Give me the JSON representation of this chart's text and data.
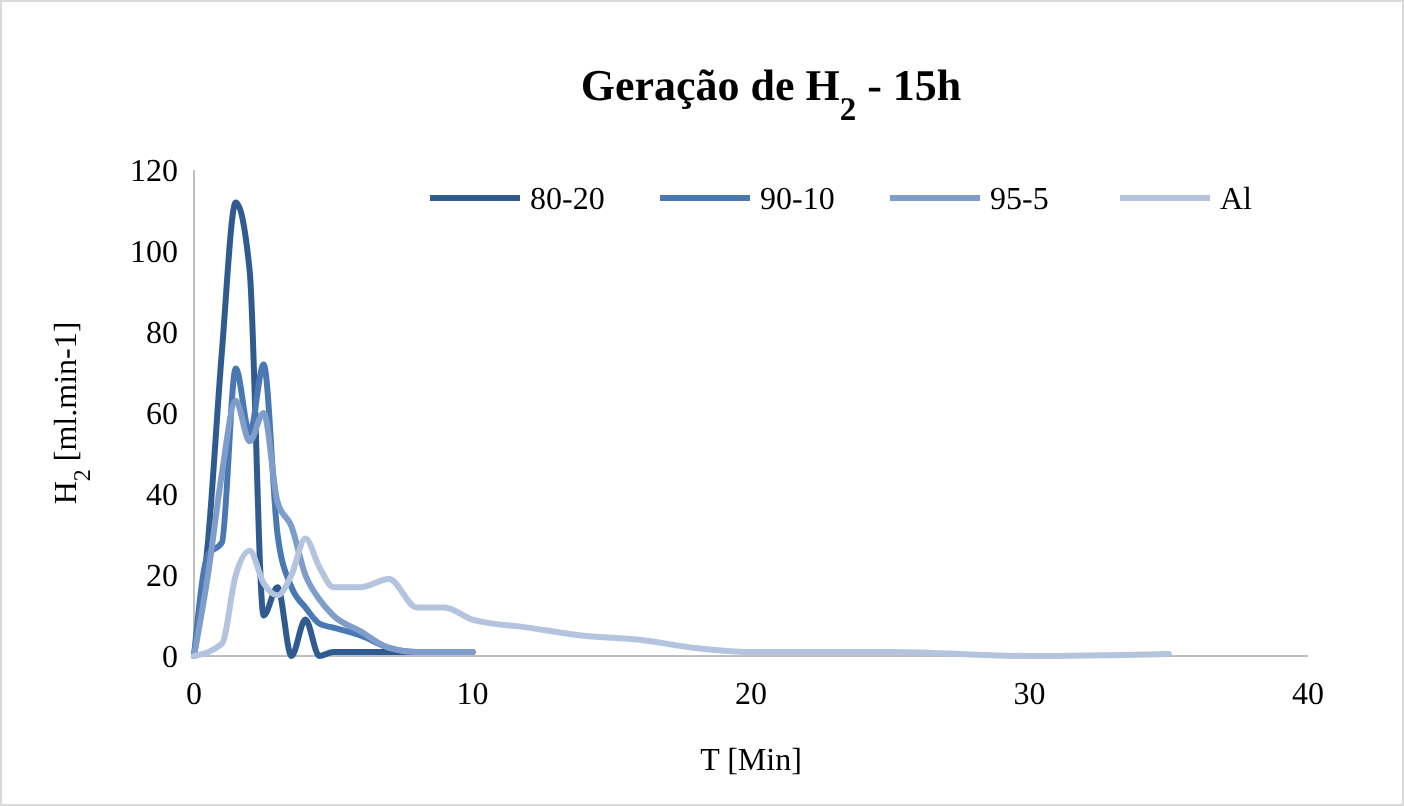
{
  "chart_data": {
    "type": "line",
    "title": "Geração de H$_{2}$ - 15h",
    "xlabel": "T [Min]",
    "ylabel": "H$_{2}$ [ml.min-1]",
    "xlim": [
      0,
      40
    ],
    "xticks": [
      0,
      10,
      20,
      30,
      40
    ],
    "ylim": [
      0,
      120
    ],
    "yticks": [
      0,
      20,
      40,
      60,
      80,
      100,
      120
    ],
    "legend": "top",
    "marker": "none",
    "line_style": "solid",
    "series": [
      {
        "name": "80-20",
        "color": "#2f5b91",
        "x": [
          0,
          0.5,
          1,
          1.5,
          2,
          2.5,
          3,
          3.5,
          4,
          4.5,
          5,
          6,
          7,
          8,
          9,
          10
        ],
        "values": [
          0,
          28,
          75,
          112,
          95,
          10,
          17,
          0,
          9,
          0,
          1,
          1,
          1,
          1,
          1,
          1
        ]
      },
      {
        "name": "90-10",
        "color": "#4a78b2",
        "x": [
          0,
          0.5,
          1,
          1.5,
          2,
          2.5,
          3,
          3.5,
          4,
          4.5,
          5,
          6,
          7,
          8,
          9,
          10
        ],
        "values": [
          0,
          25,
          28,
          71,
          55,
          72,
          30,
          17,
          12,
          8,
          7,
          5,
          2,
          1,
          1,
          1
        ]
      },
      {
        "name": "95-5",
        "color": "#7f9dca",
        "x": [
          0,
          0.5,
          1,
          1.5,
          2,
          2.5,
          3,
          3.5,
          4,
          4.5,
          5,
          6,
          7,
          8,
          9,
          10
        ],
        "values": [
          0,
          20,
          45,
          63,
          53,
          60,
          38,
          32,
          20,
          14,
          10,
          6,
          2,
          1,
          1,
          1
        ]
      },
      {
        "name": "Al",
        "color": "#b4c4df",
        "x": [
          0,
          1,
          1.5,
          2,
          2.5,
          3,
          3.5,
          4,
          4.5,
          5,
          6,
          7,
          8,
          9,
          10,
          12,
          14,
          16,
          18,
          20,
          25,
          30,
          35
        ],
        "values": [
          0,
          3,
          20,
          26,
          18,
          15,
          20,
          29,
          22,
          17,
          17,
          19,
          12,
          12,
          9,
          7,
          5,
          4,
          2,
          1,
          1,
          0,
          0.5
        ]
      }
    ]
  }
}
